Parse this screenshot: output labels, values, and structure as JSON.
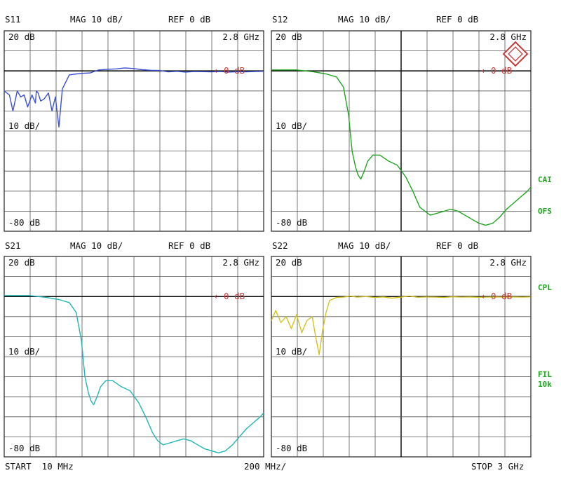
{
  "panels": [
    {
      "id": "s11",
      "param": "S11",
      "mag": "MAG 10 dB/",
      "ref": "REF 0 dB",
      "top_left": "20 dB",
      "top_right": "2.8 GHz",
      "mid_left": "10 dB/",
      "bottom_left": "-80 dB",
      "ref_marker": "0 dB"
    },
    {
      "id": "s12",
      "param": "S12",
      "mag": "MAG 10 dB/",
      "ref": "REF 0 dB",
      "top_left": "20 dB",
      "top_right": "2.8 GHz",
      "mid_left": "10 dB/",
      "bottom_left": "-80 dB",
      "ref_marker": "0 dB"
    },
    {
      "id": "s21",
      "param": "S21",
      "mag": "MAG 10 dB/",
      "ref": "REF 0 dB",
      "top_left": "20 dB",
      "top_right": "2.8 GHz",
      "mid_left": "10 dB/",
      "bottom_left": "-80 dB",
      "ref_marker": "0 dB"
    },
    {
      "id": "s22",
      "param": "S22",
      "mag": "MAG 10 dB/",
      "ref": "REF 0 dB",
      "top_left": "20 dB",
      "top_right": "2.8 GHz",
      "mid_left": "10 dB/",
      "bottom_left": "-80 dB",
      "ref_marker": "0 dB"
    }
  ],
  "side_labels": {
    "cai": "CAI",
    "ofs": "OFS",
    "cpl": "CPL",
    "fil": "FIL",
    "fil_bw": "10k"
  },
  "footer": {
    "start": "START  10 MHz",
    "span": "200 MHz/",
    "stop": "STOP 3 GHz"
  },
  "chart_data": [
    {
      "type": "line",
      "title": "S11",
      "x_unit": "MHz",
      "xlim": [
        10,
        3000
      ],
      "ylabel": "MAG 10 dB/",
      "ylim": [
        -80,
        20
      ],
      "grid": true,
      "color": "#3a4fd6",
      "series": [
        {
          "name": "S11",
          "x": [
            10,
            70,
            110,
            160,
            200,
            240,
            280,
            330,
            370,
            380,
            400,
            430,
            470,
            520,
            560,
            600,
            640,
            680,
            760,
            840,
            920,
            1000,
            1100,
            1200,
            1300,
            1400,
            1500,
            1600,
            1700,
            1800,
            1900,
            2000,
            2100,
            2200,
            2300,
            2400,
            2500,
            2600,
            2700,
            2800,
            2900,
            3000
          ],
          "y": [
            -10,
            -12,
            -20,
            -10,
            -13,
            -12,
            -18,
            -12,
            -16,
            -10,
            -11,
            -15,
            -14,
            -11,
            -20,
            -13,
            -28,
            -9,
            -2,
            -1.5,
            -1.2,
            -1,
            0.5,
            0.8,
            1,
            1.5,
            1.2,
            0.6,
            0.3,
            0.2,
            -0.5,
            -0.2,
            -0.6,
            -0.3,
            -0.4,
            -0.5,
            -0.3,
            -0.6,
            -0.4,
            -0.5,
            -0.3,
            -0.2
          ]
        }
      ]
    },
    {
      "type": "line",
      "title": "S12",
      "x_unit": "MHz",
      "xlim": [
        10,
        3000
      ],
      "ylabel": "MAG 10 dB/",
      "ylim": [
        -80,
        20
      ],
      "grid": true,
      "color": "#1fa51f",
      "series": [
        {
          "name": "S12",
          "x": [
            10,
            300,
            500,
            640,
            760,
            840,
            900,
            940,
            980,
            1010,
            1040,
            1080,
            1120,
            1180,
            1260,
            1360,
            1460,
            1560,
            1640,
            1720,
            1780,
            1840,
            1920,
            2000,
            2080,
            2160,
            2240,
            2320,
            2400,
            2480,
            2560,
            2640,
            2720,
            2800,
            2880,
            2960,
            3000
          ],
          "y": [
            0.5,
            0.5,
            -0.5,
            -1.5,
            -3,
            -8,
            -22,
            -40,
            -48,
            -52,
            -54,
            -50,
            -45,
            -42,
            -42,
            -45,
            -47,
            -53,
            -60,
            -68,
            -70,
            -72,
            -71,
            -70,
            -69,
            -70,
            -72,
            -74,
            -76,
            -77,
            -76,
            -73,
            -69,
            -66,
            -63,
            -60,
            -58
          ]
        }
      ]
    },
    {
      "type": "line",
      "title": "S21",
      "x_unit": "MHz",
      "xlim": [
        10,
        3000
      ],
      "ylabel": "MAG 10 dB/",
      "ylim": [
        -80,
        20
      ],
      "grid": true,
      "color": "#22b5b5",
      "series": [
        {
          "name": "S21",
          "x": [
            10,
            300,
            500,
            640,
            760,
            840,
            900,
            940,
            980,
            1010,
            1040,
            1080,
            1120,
            1180,
            1260,
            1360,
            1460,
            1560,
            1640,
            1720,
            1780,
            1840,
            1920,
            2000,
            2080,
            2160,
            2240,
            2320,
            2400,
            2480,
            2560,
            2640,
            2720,
            2800,
            2880,
            2960,
            3000
          ],
          "y": [
            0.5,
            0.5,
            -0.5,
            -1.5,
            -3,
            -8,
            -22,
            -40,
            -48,
            -52,
            -54,
            -50,
            -45,
            -42,
            -42,
            -45,
            -47,
            -53,
            -60,
            -68,
            -72,
            -74,
            -73,
            -72,
            -71,
            -72,
            -74,
            -76,
            -77,
            -78,
            -77,
            -74,
            -70,
            -66,
            -63,
            -60,
            -58
          ]
        }
      ]
    },
    {
      "type": "line",
      "title": "S22",
      "x_unit": "MHz",
      "xlim": [
        10,
        3000
      ],
      "ylabel": "MAG 10 dB/",
      "ylim": [
        -80,
        20
      ],
      "grid": true,
      "color": "#d4c21c",
      "series": [
        {
          "name": "S22",
          "x": [
            10,
            60,
            120,
            180,
            240,
            300,
            360,
            420,
            480,
            520,
            560,
            600,
            640,
            680,
            760,
            840,
            920,
            1000,
            1100,
            1200,
            1300,
            1400,
            1500,
            1600,
            1700,
            1800,
            1900,
            2000,
            2100,
            2200,
            2300,
            2400,
            2500,
            2600,
            2700,
            2800,
            2900,
            3000
          ],
          "y": [
            -12,
            -7,
            -13,
            -10,
            -16,
            -9,
            -18,
            -12,
            -10,
            -20,
            -29,
            -17,
            -8,
            -2,
            -0.5,
            -0.3,
            0.2,
            -0.3,
            0,
            -0.5,
            -0.2,
            -0.8,
            -0.3,
            0.2,
            -0.4,
            -0.2,
            -0.3,
            -0.5,
            -0.1,
            -0.3,
            -0.2,
            -0.4,
            -0.3,
            -0.2,
            -0.3,
            -0.2,
            -0.3,
            -0.2
          ]
        }
      ]
    }
  ]
}
